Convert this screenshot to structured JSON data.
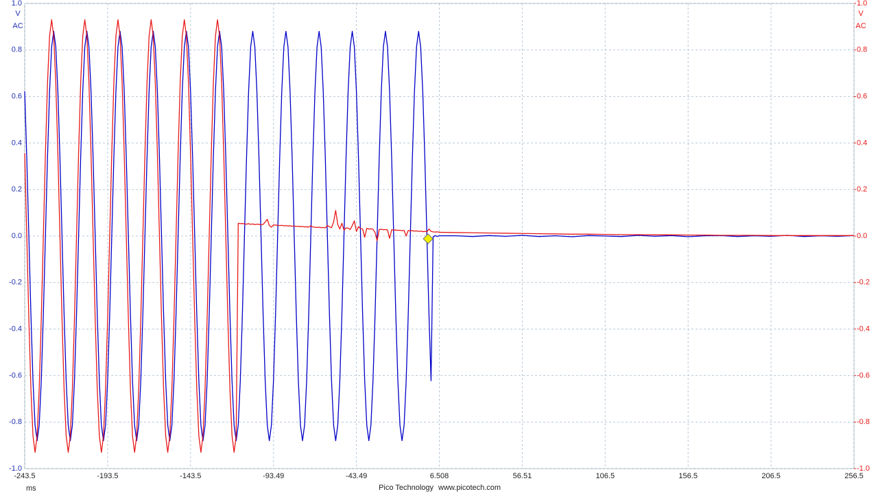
{
  "chart_data": {
    "type": "line",
    "x_label": "ms",
    "y_unit": "V",
    "y_coupling": "AC",
    "y2_unit": "V",
    "y2_coupling": "AC",
    "footer_left": "Pico Technology",
    "footer_right": "www.picotech.com",
    "xlim": [
      -243.5,
      256.5
    ],
    "xticks": [
      -243.5,
      -193.5,
      -143.5,
      -93.49,
      -43.49,
      6.508,
      56.51,
      106.5,
      156.5,
      206.5,
      256.5
    ],
    "ylim": [
      -1,
      1
    ],
    "yticks": [
      {
        "value": 1,
        "label": "1.0"
      },
      0.8,
      0.6,
      0.4,
      0.2,
      {
        "value": 0,
        "label": "0.0"
      },
      -0.2,
      -0.4,
      -0.6,
      -0.8,
      {
        "value": -1,
        "label": "-1.0"
      }
    ],
    "y2lim": [
      -1,
      1
    ],
    "y2ticks": [
      {
        "value": 1,
        "label": "1.0"
      },
      0.8,
      0.6,
      0.4,
      0.2,
      {
        "value": 0,
        "label": "0.0"
      },
      -0.2,
      -0.4,
      -0.6,
      -0.8,
      {
        "value": -1,
        "label": "-1.0"
      }
    ],
    "grid": true,
    "trigger": {
      "x": -0.3,
      "y": 0,
      "color": "#f0f000"
    },
    "x": [
      -243.5,
      -242.25,
      -241,
      -239.75,
      -238.5,
      -237.25,
      -236,
      -234.75,
      -233.5,
      -232.25,
      -231,
      -229.75,
      -228.5,
      -227.25,
      -226,
      -224.75,
      -223.5,
      -222.25,
      -221,
      -219.75,
      -218.5,
      -217.25,
      -216,
      -214.75,
      -213.5,
      -212.25,
      -211,
      -209.75,
      -208.5,
      -207.25,
      -206,
      -204.75,
      -203.5,
      -202.25,
      -201,
      -199.75,
      -198.5,
      -197.25,
      -196,
      -194.75,
      -193.5,
      -192.25,
      -191,
      -189.75,
      -188.5,
      -187.25,
      -186,
      -184.75,
      -183.5,
      -182.25,
      -181,
      -179.75,
      -178.5,
      -177.25,
      -176,
      -174.75,
      -173.5,
      -172.25,
      -171,
      -169.75,
      -168.5,
      -167.25,
      -166,
      -164.75,
      -163.5,
      -162.25,
      -161,
      -159.75,
      -158.5,
      -157.25,
      -156,
      -154.75,
      -153.5,
      -152.25,
      -151,
      -149.75,
      -148.5,
      -147.25,
      -146,
      -144.75,
      -143.5,
      -142.25,
      -141,
      -139.75,
      -138.5,
      -137.25,
      -136,
      -134.75,
      -133.5,
      -132.25,
      -131,
      -129.75,
      -128.5,
      -127.25,
      -126,
      -124.75,
      -123.5,
      -122.25,
      -121,
      -119.75,
      -118.5,
      -117.25,
      -116,
      -114.75,
      -113.5,
      -112.25,
      -111,
      -109.75,
      -108.5,
      -107.25,
      -106,
      -104.75,
      -103.5,
      -102.25,
      -101,
      -99.75,
      -98.5,
      -97.25,
      -96,
      -94.75,
      -93.5,
      -92.25,
      -91,
      -89.75,
      -88.5,
      -87.25,
      -86,
      -84.75,
      -83.5,
      -82.25,
      -81,
      -79.75,
      -78.5,
      -77.25,
      -76,
      -74.75,
      -73.5,
      -72.25,
      -71,
      -69.75,
      -68.5,
      -67.25,
      -66,
      -64.75,
      -63.5,
      -62.25,
      -61,
      -59.75,
      -58.5,
      -57.25,
      -56,
      -54.75,
      -53.5,
      -52.25,
      -51,
      -49.75,
      -48.5,
      -47.25,
      -46,
      -44.75,
      -43.5,
      -42.25,
      -41,
      -39.75,
      -38.5,
      -37.25,
      -36,
      -34.75,
      -33.5,
      -32.25,
      -31,
      -29.75,
      -28.5,
      -27.25,
      -26,
      -24.75,
      -23.5,
      -22.25,
      -21,
      -19.75,
      -18.5,
      -17.25,
      -16,
      -14.75,
      -13.5,
      -12.25,
      -11,
      -9.75,
      -8.5,
      -7.25,
      -6,
      -4.75,
      -3.5,
      -2.25,
      -1,
      0.25,
      1.5,
      2.75,
      4,
      5.25,
      6.5,
      16.5,
      26.5,
      36.5,
      46.5,
      56.5,
      66.5,
      76.5,
      86.5,
      96.5,
      106.5,
      116.5,
      126.5,
      136.5,
      146.5,
      156.5,
      166.5,
      176.5,
      186.5,
      196.5,
      206.5,
      216.5,
      226.5,
      236.5,
      246.5,
      256.5
    ],
    "series": [
      {
        "color": "#0000c8",
        "values": [
          0.622,
          0.337,
          0,
          -0.337,
          -0.622,
          -0.813,
          -0.88,
          -0.813,
          -0.622,
          -0.337,
          0,
          0.337,
          0.622,
          0.813,
          0.88,
          0.813,
          0.622,
          0.337,
          0,
          -0.337,
          -0.622,
          -0.813,
          -0.88,
          -0.813,
          -0.622,
          -0.337,
          0,
          0.337,
          0.622,
          0.813,
          0.88,
          0.813,
          0.622,
          0.337,
          0,
          -0.337,
          -0.622,
          -0.813,
          -0.88,
          -0.813,
          -0.622,
          -0.337,
          0,
          0.337,
          0.622,
          0.813,
          0.88,
          0.813,
          0.622,
          0.337,
          0,
          -0.337,
          -0.622,
          -0.813,
          -0.88,
          -0.813,
          -0.622,
          -0.337,
          0,
          0.337,
          0.622,
          0.813,
          0.88,
          0.813,
          0.622,
          0.337,
          0,
          -0.337,
          -0.622,
          -0.813,
          -0.88,
          -0.813,
          -0.622,
          -0.337,
          0,
          0.337,
          0.622,
          0.813,
          0.88,
          0.813,
          0.622,
          0.337,
          0,
          -0.337,
          -0.622,
          -0.813,
          -0.88,
          -0.813,
          -0.622,
          -0.337,
          0,
          0.337,
          0.622,
          0.813,
          0.88,
          0.813,
          0.622,
          0.337,
          0,
          -0.337,
          -0.622,
          -0.813,
          -0.88,
          -0.813,
          -0.622,
          -0.337,
          0,
          0.337,
          0.622,
          0.813,
          0.88,
          0.813,
          0.622,
          0.337,
          0,
          -0.337,
          -0.622,
          -0.813,
          -0.88,
          -0.813,
          -0.622,
          -0.337,
          0,
          0.337,
          0.622,
          0.813,
          0.88,
          0.813,
          0.622,
          0.337,
          0,
          -0.337,
          -0.622,
          -0.813,
          -0.88,
          -0.813,
          -0.622,
          -0.337,
          0,
          0.337,
          0.622,
          0.813,
          0.88,
          0.813,
          0.622,
          0.337,
          0,
          -0.337,
          -0.622,
          -0.813,
          -0.88,
          -0.813,
          -0.622,
          -0.337,
          0,
          0.337,
          0.622,
          0.813,
          0.88,
          0.813,
          0.622,
          0.337,
          0,
          -0.337,
          -0.622,
          -0.813,
          -0.88,
          -0.813,
          -0.622,
          -0.337,
          0,
          0.337,
          0.622,
          0.813,
          0.88,
          0.813,
          0.622,
          0.337,
          0,
          -0.337,
          -0.622,
          -0.813,
          -0.88,
          -0.813,
          -0.622,
          -0.337,
          0,
          0.337,
          0.622,
          0.813,
          0.88,
          0.813,
          0.622,
          0.337,
          0,
          -0.337,
          -0.622,
          -0.005,
          0.002,
          -0.002,
          0.001,
          0.001,
          -0.002,
          0.002,
          -0.001,
          0.003,
          -0.002,
          0.001,
          -0.003,
          0.002,
          0,
          -0.002,
          0.003,
          -0.001,
          0.002,
          -0.003,
          0.001,
          0.002,
          -0.002,
          0.001,
          -0.001,
          0.003,
          -0.002,
          0.001,
          -0.001,
          0.002
        ]
      },
      {
        "color": "#e81818",
        "axis": "y2",
        "values": [
          0.356,
          0,
          -0.356,
          -0.658,
          -0.859,
          -0.93,
          -0.859,
          -0.658,
          -0.356,
          0,
          0.356,
          0.658,
          0.859,
          0.93,
          0.859,
          0.658,
          0.356,
          0,
          -0.356,
          -0.658,
          -0.859,
          -0.93,
          -0.859,
          -0.658,
          -0.356,
          0,
          0.356,
          0.658,
          0.859,
          0.93,
          0.859,
          0.658,
          0.356,
          0,
          -0.356,
          -0.658,
          -0.859,
          -0.93,
          -0.859,
          -0.658,
          -0.356,
          0,
          0.356,
          0.658,
          0.859,
          0.93,
          0.859,
          0.658,
          0.356,
          0,
          -0.356,
          -0.658,
          -0.859,
          -0.93,
          -0.859,
          -0.658,
          -0.356,
          0,
          0.356,
          0.658,
          0.859,
          0.93,
          0.859,
          0.658,
          0.356,
          0,
          -0.356,
          -0.658,
          -0.859,
          -0.93,
          -0.859,
          -0.658,
          -0.356,
          0,
          0.356,
          0.658,
          0.859,
          0.93,
          0.859,
          0.658,
          0.356,
          0,
          -0.356,
          -0.658,
          -0.859,
          -0.93,
          -0.859,
          -0.658,
          -0.356,
          0,
          0.356,
          0.658,
          0.859,
          0.93,
          0.859,
          0.658,
          0.356,
          0,
          -0.356,
          -0.658,
          -0.859,
          -0.93,
          -0.859,
          0.055,
          0.053,
          0.054,
          0.052,
          0.051,
          0.053,
          0.05,
          0.052,
          0.049,
          0.051,
          0.05,
          0.048,
          0.05,
          0.06,
          0.072,
          0.045,
          0.038,
          0.048,
          0.047,
          0.046,
          0.045,
          0.046,
          0.044,
          0.045,
          0.043,
          0.044,
          0.042,
          0.043,
          0.041,
          0.042,
          0.04,
          0.041,
          0.039,
          0.04,
          0.038,
          0.044,
          0.039,
          0.038,
          0.037,
          0.038,
          0.036,
          0.037,
          0.035,
          0.045,
          0.04,
          0.036,
          0.06,
          0.11,
          0.05,
          0.03,
          0.055,
          0.025,
          0.035,
          0.034,
          0.028,
          0.045,
          0.065,
          0.02,
          0.04,
          0.032,
          0.03,
          -0.005,
          0.033,
          0.03,
          0.031,
          0.029,
          0.015,
          -0.02,
          0.028,
          0.029,
          0.027,
          0.028,
          0.026,
          -0.01,
          0.027,
          0.025,
          0.026,
          0.024,
          0.025,
          0.023,
          0.024,
          0,
          0.024,
          0.022,
          0.023,
          0.021,
          0.022,
          0.02,
          0.021,
          0.019,
          0.02,
          0.018,
          0.03,
          0.02,
          0.018,
          0.017,
          0.018,
          0.016,
          0.015,
          0.014,
          0.013,
          0.012,
          0.011,
          0.01,
          0.009,
          0.008,
          0.008,
          0.007,
          0.006,
          0.006,
          0.005,
          0.005,
          0.004,
          0.004,
          0.003,
          0.003,
          0.003,
          0.002,
          0.002,
          0.002,
          0.002,
          0.002,
          0.002
        ]
      }
    ]
  }
}
